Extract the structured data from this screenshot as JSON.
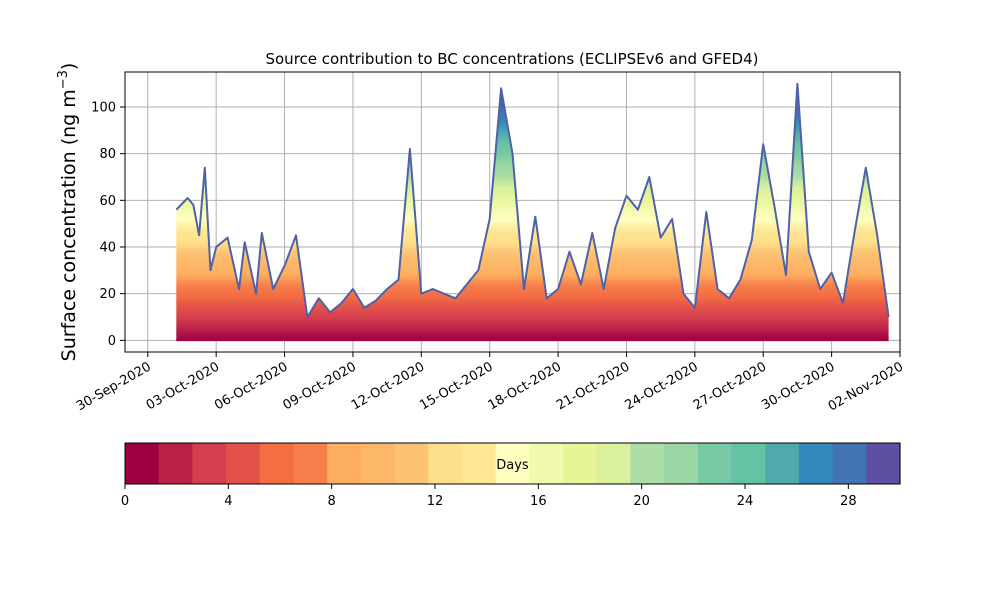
{
  "chart_data": [
    {
      "type": "area",
      "title": "Source contribution to BC concentrations (ECLIPSEv6 and GFED4)",
      "ylabel": "Surface concentration (ng m",
      "ylabel_sup": "−3",
      "ylabel_close": ")",
      "xlabel": "",
      "x_range": [
        "2020-09-29",
        "2020-11-02"
      ],
      "ylim": [
        -5,
        115
      ],
      "y_ticks": [
        0,
        20,
        40,
        60,
        80,
        100
      ],
      "x_ticks": [
        "30-Sep-2020",
        "03-Oct-2020",
        "06-Oct-2020",
        "09-Oct-2020",
        "12-Oct-2020",
        "15-Oct-2020",
        "18-Oct-2020",
        "21-Oct-2020",
        "24-Oct-2020",
        "27-Oct-2020",
        "30-Oct-2020",
        "02-Nov-2020"
      ],
      "x_tick_dates": [
        "2020-09-30",
        "2020-10-03",
        "2020-10-06",
        "2020-10-09",
        "2020-10-12",
        "2020-10-15",
        "2020-10-18",
        "2020-10-21",
        "2020-10-24",
        "2020-10-27",
        "2020-10-30",
        "2020-11-02"
      ],
      "grid": true,
      "stacked": true,
      "stack_layers_days": 30,
      "total_series": {
        "dates": [
          "2020-10-01 06:00",
          "2020-10-01 18:00",
          "2020-10-02 00:00",
          "2020-10-02 06:00",
          "2020-10-02 12:00",
          "2020-10-02 18:00",
          "2020-10-03 00:00",
          "2020-10-03 12:00",
          "2020-10-04 00:00",
          "2020-10-04 06:00",
          "2020-10-04 18:00",
          "2020-10-05 00:00",
          "2020-10-05 12:00",
          "2020-10-06 00:00",
          "2020-10-06 12:00",
          "2020-10-07 00:00",
          "2020-10-07 12:00",
          "2020-10-08 00:00",
          "2020-10-08 12:00",
          "2020-10-09 00:00",
          "2020-10-09 12:00",
          "2020-10-10 00:00",
          "2020-10-10 12:00",
          "2020-10-11 00:00",
          "2020-10-11 12:00",
          "2020-10-12 00:00",
          "2020-10-12 12:00",
          "2020-10-13 00:00",
          "2020-10-13 12:00",
          "2020-10-14 00:00",
          "2020-10-14 12:00",
          "2020-10-15 00:00",
          "2020-10-15 12:00",
          "2020-10-16 00:00",
          "2020-10-16 12:00",
          "2020-10-17 00:00",
          "2020-10-17 12:00",
          "2020-10-18 00:00",
          "2020-10-18 12:00",
          "2020-10-19 00:00",
          "2020-10-19 12:00",
          "2020-10-20 00:00",
          "2020-10-20 12:00",
          "2020-10-21 00:00",
          "2020-10-21 12:00",
          "2020-10-22 00:00",
          "2020-10-22 12:00",
          "2020-10-23 00:00",
          "2020-10-23 12:00",
          "2020-10-24 00:00",
          "2020-10-24 12:00",
          "2020-10-25 00:00",
          "2020-10-25 12:00",
          "2020-10-26 00:00",
          "2020-10-26 12:00",
          "2020-10-27 00:00",
          "2020-10-27 12:00",
          "2020-10-28 00:00",
          "2020-10-28 12:00",
          "2020-10-29 00:00",
          "2020-10-29 12:00",
          "2020-10-30 00:00",
          "2020-10-30 12:00",
          "2020-10-31 00:00",
          "2020-10-31 12:00",
          "2020-11-01 00:00",
          "2020-11-01 12:00"
        ],
        "values": [
          56,
          61,
          58,
          45,
          74,
          30,
          40,
          44,
          22,
          42,
          20,
          46,
          22,
          32,
          45,
          10,
          18,
          12,
          16,
          22,
          14,
          17,
          22,
          26,
          82,
          20,
          22,
          20,
          18,
          24,
          30,
          52,
          108,
          80,
          22,
          53,
          18,
          22,
          38,
          24,
          46,
          22,
          48,
          62,
          56,
          70,
          44,
          52,
          20,
          14,
          55,
          22,
          18,
          26,
          43,
          84,
          57,
          28,
          110,
          38,
          22,
          29,
          16,
          46,
          74,
          45,
          10
        ]
      },
      "colorbar": {
        "label": "Days",
        "ticks": [
          0,
          4,
          8,
          12,
          16,
          20,
          24,
          28
        ],
        "range": [
          0,
          30
        ],
        "colors": [
          "#9e0142",
          "#bb2048",
          "#d53e4f",
          "#e25249",
          "#f46d43",
          "#f67f4b",
          "#fdae61",
          "#fdb768",
          "#fdc374",
          "#fee08b",
          "#fee695",
          "#ffffbf",
          "#f3fab0",
          "#e6f598",
          "#d9f09f",
          "#abdda4",
          "#9bd7a4",
          "#78c9a4",
          "#66c2a5",
          "#51a8ad",
          "#3288bd",
          "#4273b3",
          "#5e4fa2"
        ]
      }
    }
  ]
}
